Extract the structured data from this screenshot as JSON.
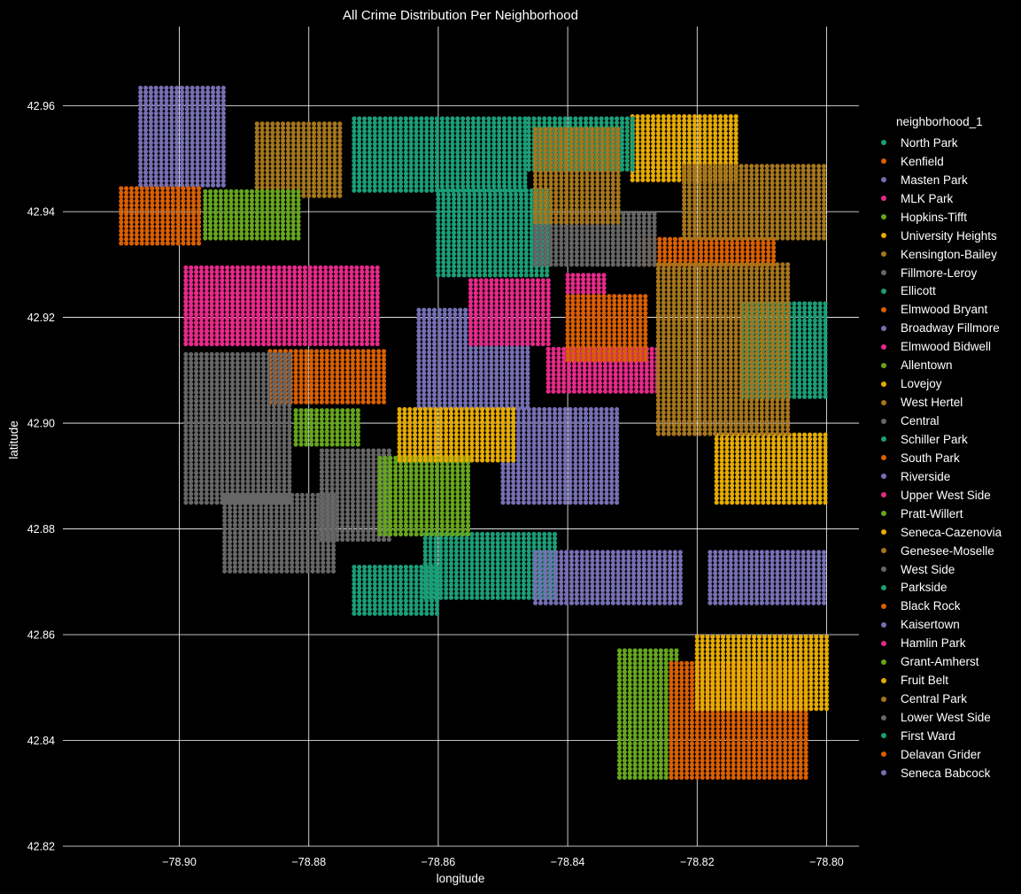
{
  "chart_data": {
    "type": "scatter",
    "title": "All Crime Distribution Per Neighborhood",
    "xlabel": "longitude",
    "ylabel": "latitude",
    "xlim": [
      -78.918,
      -78.795
    ],
    "ylim": [
      42.82,
      42.975
    ],
    "xticks": [
      -78.9,
      -78.88,
      -78.86,
      -78.84,
      -78.82,
      -78.8
    ],
    "xtick_labels": [
      "−78.90",
      "−78.88",
      "−78.86",
      "−78.84",
      "−78.82",
      "−78.80"
    ],
    "yticks": [
      42.82,
      42.84,
      42.86,
      42.88,
      42.9,
      42.92,
      42.94,
      42.96
    ],
    "ytick_labels": [
      "42.82",
      "42.84",
      "42.86",
      "42.88",
      "42.90",
      "42.92",
      "42.94",
      "42.96"
    ],
    "grid": true,
    "background": "#000000",
    "grid_color": "#ffffff",
    "legend_title": "neighborhood_1",
    "legend_position": "right",
    "series": [
      {
        "name": "North Park",
        "color": "#1b9e77",
        "regions": [
          [
            -78.873,
            -78.846,
            42.944,
            42.958
          ],
          [
            -78.86,
            -78.843,
            42.928,
            42.944
          ]
        ]
      },
      {
        "name": "Kenfield",
        "color": "#d95f02",
        "regions": [
          [
            -78.829,
            -78.808,
            42.93,
            42.935
          ]
        ]
      },
      {
        "name": "Masten Park",
        "color": "#7570b3",
        "regions": [
          [
            -78.863,
            -78.846,
            42.903,
            42.922
          ]
        ]
      },
      {
        "name": "MLK Park",
        "color": "#e7298a",
        "regions": [
          [
            -78.899,
            -78.869,
            42.915,
            42.93
          ],
          [
            -78.855,
            -78.843,
            42.915,
            42.927
          ]
        ]
      },
      {
        "name": "Hopkins-Tifft",
        "color": "#66a61e",
        "regions": [
          [
            -78.832,
            -78.823,
            42.833,
            42.857
          ]
        ]
      },
      {
        "name": "University Heights",
        "color": "#e6ab02",
        "regions": [
          [
            -78.83,
            -78.814,
            42.946,
            42.958
          ]
        ]
      },
      {
        "name": "Kensington-Bailey",
        "color": "#a6761d",
        "regions": [
          [
            -78.822,
            -78.8,
            42.935,
            42.949
          ]
        ]
      },
      {
        "name": "Fillmore-Leroy",
        "color": "#666666",
        "regions": [
          [
            -78.845,
            -78.826,
            42.93,
            42.94
          ]
        ]
      },
      {
        "name": "Ellicott",
        "color": "#1b9e77",
        "regions": [
          [
            -78.862,
            -78.842,
            42.867,
            42.879
          ]
        ]
      },
      {
        "name": "Elmwood Bryant",
        "color": "#d95f02",
        "regions": [
          [
            -78.886,
            -78.868,
            42.904,
            42.914
          ]
        ]
      },
      {
        "name": "Broadway Fillmore",
        "color": "#7570b3",
        "regions": [
          [
            -78.85,
            -78.832,
            42.885,
            42.903
          ]
        ]
      },
      {
        "name": "Elmwood Bidwell",
        "color": "#e7298a",
        "regions": [
          [
            -78.899,
            -78.886,
            42.915,
            42.925
          ]
        ]
      },
      {
        "name": "Allentown",
        "color": "#66a61e",
        "regions": [
          [
            -78.882,
            -78.872,
            42.896,
            42.903
          ]
        ]
      },
      {
        "name": "Lovejoy",
        "color": "#e6ab02",
        "regions": [
          [
            -78.817,
            -78.8,
            42.885,
            42.898
          ]
        ]
      },
      {
        "name": "West Hertel",
        "color": "#a6761d",
        "regions": [
          [
            -78.888,
            -78.875,
            42.943,
            42.957
          ]
        ]
      },
      {
        "name": "Central",
        "color": "#666666",
        "regions": [
          [
            -78.878,
            -78.867,
            42.878,
            42.895
          ]
        ]
      },
      {
        "name": "Schiller Park",
        "color": "#1b9e77",
        "regions": [
          [
            -78.813,
            -78.8,
            42.905,
            42.923
          ]
        ]
      },
      {
        "name": "South Park",
        "color": "#d95f02",
        "regions": [
          [
            -78.824,
            -78.803,
            42.833,
            42.855
          ]
        ]
      },
      {
        "name": "Riverside",
        "color": "#7570b3",
        "regions": [
          [
            -78.906,
            -78.893,
            42.945,
            42.964
          ]
        ]
      },
      {
        "name": "Upper West Side",
        "color": "#e7298a",
        "regions": [
          [
            -78.843,
            -78.826,
            42.906,
            42.914
          ]
        ]
      },
      {
        "name": "Pratt-Willert",
        "color": "#66a61e",
        "regions": [
          [
            -78.869,
            -78.855,
            42.879,
            42.894
          ]
        ]
      },
      {
        "name": "Seneca-Cazenovia",
        "color": "#e6ab02",
        "regions": [
          [
            -78.82,
            -78.8,
            42.846,
            42.86
          ]
        ]
      },
      {
        "name": "Genesee-Moselle",
        "color": "#a6761d",
        "regions": [
          [
            -78.826,
            -78.806,
            42.898,
            42.93
          ]
        ]
      },
      {
        "name": "West Side",
        "color": "#666666",
        "regions": [
          [
            -78.899,
            -78.883,
            42.885,
            42.913
          ]
        ]
      },
      {
        "name": "Parkside",
        "color": "#1b9e77",
        "regions": [
          [
            -78.846,
            -78.83,
            42.948,
            42.958
          ]
        ]
      },
      {
        "name": "Black Rock",
        "color": "#d95f02",
        "regions": [
          [
            -78.909,
            -78.897,
            42.934,
            42.945
          ]
        ]
      },
      {
        "name": "Kaisertown",
        "color": "#7570b3",
        "regions": [
          [
            -78.818,
            -78.8,
            42.866,
            42.876
          ]
        ]
      },
      {
        "name": "Hamlin Park",
        "color": "#e7298a",
        "regions": [
          [
            -78.84,
            -78.834,
            42.92,
            42.928
          ]
        ]
      },
      {
        "name": "Grant-Amherst",
        "color": "#66a61e",
        "regions": [
          [
            -78.896,
            -78.881,
            42.935,
            42.944
          ]
        ]
      },
      {
        "name": "Fruit Belt",
        "color": "#e6ab02",
        "regions": [
          [
            -78.866,
            -78.848,
            42.893,
            42.903
          ]
        ]
      },
      {
        "name": "Central Park",
        "color": "#a6761d",
        "regions": [
          [
            -78.845,
            -78.832,
            42.938,
            42.956
          ]
        ]
      },
      {
        "name": "Lower West Side",
        "color": "#666666",
        "regions": [
          [
            -78.893,
            -78.876,
            42.872,
            42.887
          ]
        ]
      },
      {
        "name": "First Ward",
        "color": "#1b9e77",
        "regions": [
          [
            -78.873,
            -78.86,
            42.864,
            42.873
          ]
        ]
      },
      {
        "name": "Delavan Grider",
        "color": "#d95f02",
        "regions": [
          [
            -78.84,
            -78.828,
            42.912,
            42.924
          ]
        ]
      },
      {
        "name": "Seneca Babcock",
        "color": "#7570b3",
        "regions": [
          [
            -78.845,
            -78.822,
            42.866,
            42.876
          ]
        ]
      }
    ]
  }
}
